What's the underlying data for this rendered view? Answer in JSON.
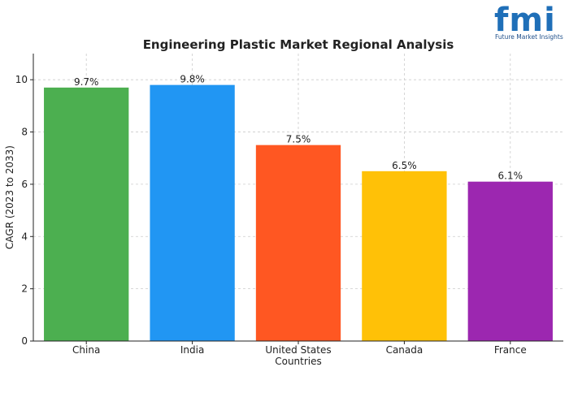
{
  "logo": {
    "mark": "fmi",
    "subtitle": "Future Market Insights",
    "color": "#1f6fb8"
  },
  "chart_data": {
    "type": "bar",
    "title": "Engineering Plastic Market Regional Analysis",
    "xlabel": "Countries",
    "ylabel": "CAGR (2023 to 2033)",
    "categories": [
      "China",
      "India",
      "United States",
      "Canada",
      "France"
    ],
    "values": [
      9.7,
      9.8,
      7.5,
      6.5,
      6.1
    ],
    "data_labels": [
      "9.7%",
      "9.8%",
      "7.5%",
      "6.5%",
      "6.1%"
    ],
    "colors": [
      "#4caf50",
      "#2196f3",
      "#ff5722",
      "#ffc107",
      "#9c27b0"
    ],
    "ylim": [
      0,
      11
    ],
    "yticks": [
      0,
      2,
      4,
      6,
      8,
      10
    ],
    "grid": true,
    "grid_style": "dashed"
  }
}
